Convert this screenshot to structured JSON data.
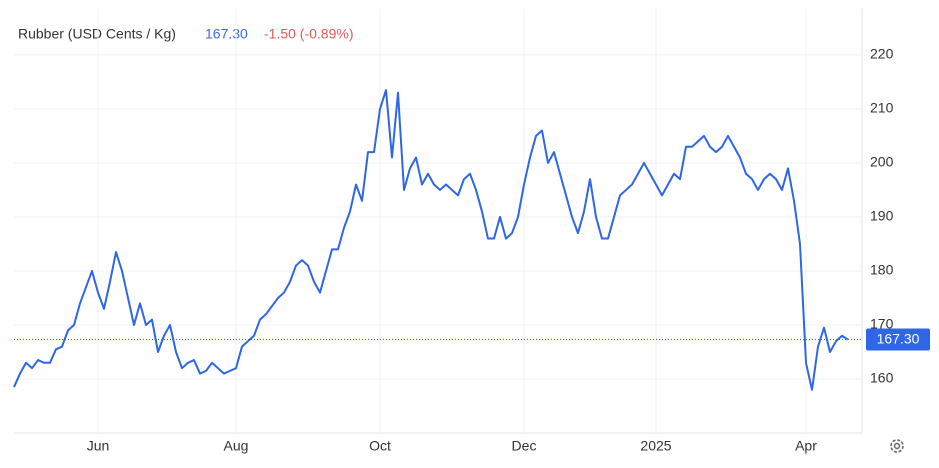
{
  "chart_data": {
    "type": "line",
    "title": "Rubber (USD Cents / Kg)",
    "price": "167.30",
    "change": "-1.50 (-0.89%)",
    "categories": [
      null,
      null,
      null,
      null,
      null,
      null,
      null,
      null,
      null,
      null,
      null,
      null,
      null,
      null,
      "Jun",
      null,
      null,
      null,
      null,
      null,
      null,
      null,
      null,
      null,
      null,
      null,
      null,
      null,
      null,
      null,
      null,
      null,
      null,
      null,
      null,
      null,
      null,
      "Aug",
      null,
      null,
      null,
      null,
      null,
      null,
      null,
      null,
      null,
      null,
      null,
      null,
      null,
      null,
      null,
      null,
      null,
      null,
      null,
      null,
      null,
      null,
      null,
      "Oct",
      null,
      null,
      null,
      null,
      null,
      null,
      null,
      null,
      null,
      null,
      null,
      null,
      null,
      null,
      null,
      null,
      null,
      null,
      null,
      null,
      null,
      null,
      null,
      "Dec",
      null,
      null,
      null,
      null,
      null,
      null,
      null,
      null,
      null,
      null,
      null,
      null,
      null,
      null,
      null,
      null,
      null,
      null,
      null,
      null,
      null,
      "2025",
      null,
      null,
      null,
      null,
      null,
      null,
      null,
      null,
      null,
      null,
      null,
      null,
      null,
      null,
      null,
      null,
      null,
      null,
      null,
      null,
      null,
      null,
      null,
      null,
      "Apr",
      null,
      null,
      null,
      null,
      null,
      null,
      null
    ],
    "series": [
      {
        "name": "Rubber",
        "color": "#2f66e8",
        "values": [
          158.5,
          161,
          163,
          162,
          163.5,
          163,
          163,
          165.5,
          166,
          169,
          170,
          174,
          177,
          180,
          176,
          173,
          178,
          183.5,
          180,
          175,
          170,
          174,
          170,
          171,
          165,
          168,
          170,
          165,
          162,
          163,
          163.5,
          161,
          161.5,
          163,
          162,
          161,
          161.5,
          162,
          166,
          167,
          168,
          171,
          172,
          173.5,
          175,
          176,
          178,
          181,
          182,
          181,
          178,
          176,
          180,
          184,
          184,
          188,
          191,
          196,
          193,
          202,
          202,
          210,
          213.5,
          201,
          213,
          195,
          199,
          201,
          196,
          198,
          196,
          195,
          196,
          195,
          194,
          197,
          198,
          195,
          191,
          186,
          186,
          190,
          186,
          187,
          190,
          196,
          201,
          205,
          206,
          200,
          202,
          198,
          194,
          190,
          187,
          191,
          197,
          190,
          186,
          186,
          190,
          194,
          195,
          196,
          198,
          200,
          198,
          196,
          194,
          196,
          198,
          197,
          203,
          203,
          204,
          205,
          203,
          202,
          203,
          205,
          203,
          201,
          198,
          197,
          195,
          197,
          198,
          197,
          195,
          199,
          193,
          185,
          163,
          158,
          166,
          169.5,
          165,
          167,
          168,
          167.3
        ]
      }
    ],
    "ylim": [
      150,
      228.5
    ],
    "yticks": [
      160,
      170,
      180,
      190,
      200,
      210,
      220
    ],
    "grid": true
  }
}
